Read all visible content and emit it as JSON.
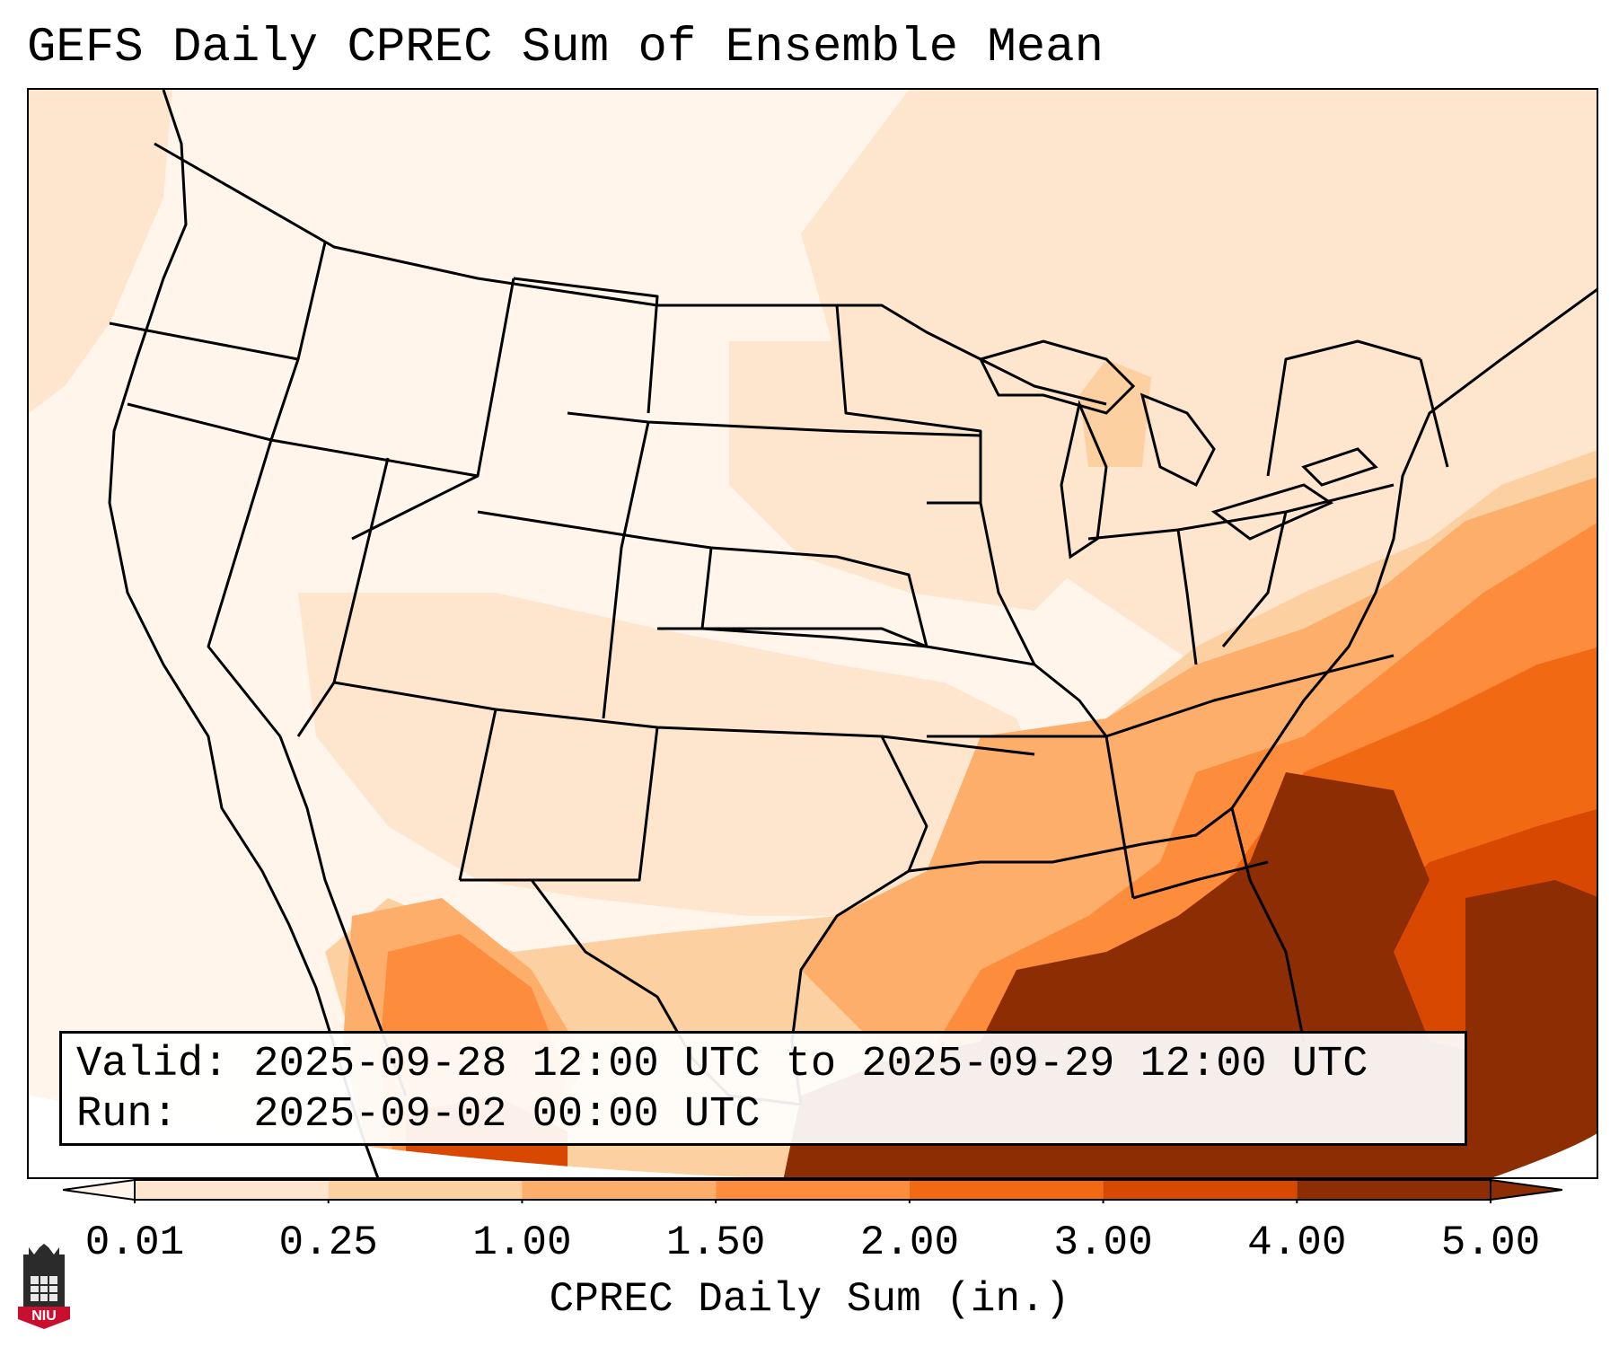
{
  "title": "GEFS Daily CPREC Sum of Ensemble Mean",
  "info": {
    "valid": "Valid: 2025-09-28 12:00 UTC to 2025-09-29 12:00 UTC",
    "run": "Run:   2025-09-02 00:00 UTC"
  },
  "colorbar": {
    "label": "CPREC Daily Sum (in.)",
    "ticks": [
      "0.01",
      "0.25",
      "1.00",
      "1.50",
      "2.00",
      "3.00",
      "4.00",
      "5.00"
    ],
    "colors": [
      "#fff5eb",
      "#fee6ce",
      "#fdd0a2",
      "#fdae6b",
      "#fd8d3c",
      "#f16913",
      "#d94801",
      "#8c2d04"
    ],
    "extend": "both"
  },
  "logo": {
    "text": "NIU",
    "icon": "niu-tower-logo",
    "color": "#c8102e"
  },
  "map": {
    "region": "Contiguous United States",
    "overlays": [
      "state-borders",
      "coastlines"
    ]
  }
}
